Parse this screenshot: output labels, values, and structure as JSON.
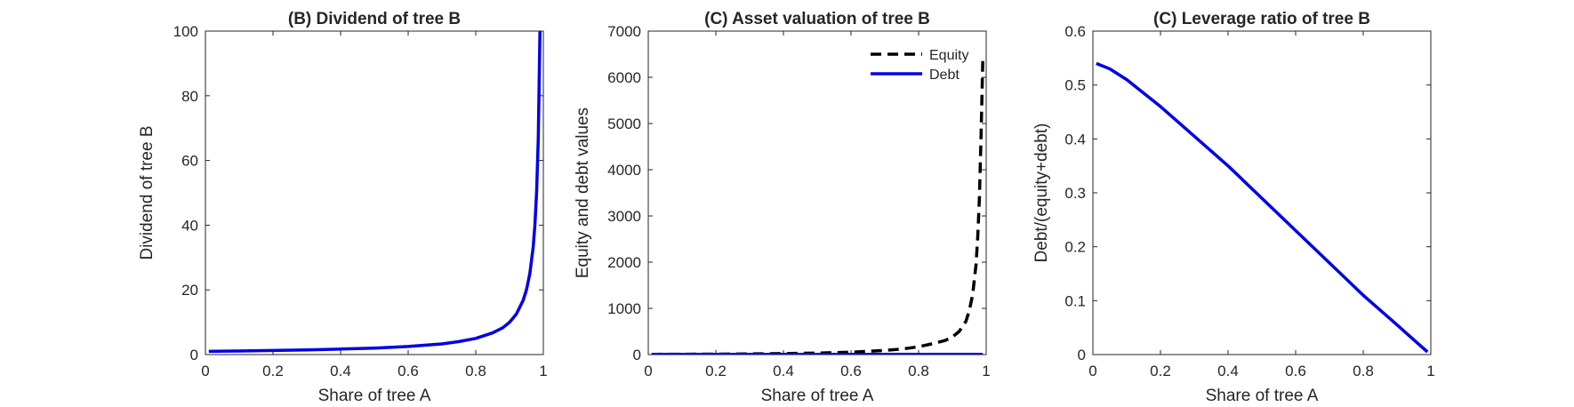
{
  "chart_data": [
    {
      "type": "line",
      "title": "(B) Dividend of tree B",
      "xlabel": "Share of tree A",
      "ylabel": "Dividend of tree B",
      "xlim": [
        0,
        1
      ],
      "ylim": [
        0,
        100
      ],
      "xticks": [
        "0",
        "0.2",
        "0.4",
        "0.6",
        "0.8",
        "1"
      ],
      "yticks": [
        "0",
        "20",
        "40",
        "60",
        "80",
        "100"
      ],
      "grid": false,
      "series": [
        {
          "color": "#0000e6",
          "style": "solid",
          "x": [
            0.01,
            0.1,
            0.2,
            0.3,
            0.4,
            0.5,
            0.6,
            0.7,
            0.75,
            0.8,
            0.85,
            0.88,
            0.9,
            0.92,
            0.94,
            0.95,
            0.96,
            0.97,
            0.975,
            0.98,
            0.985,
            0.99
          ],
          "y": [
            1.0,
            1.1,
            1.25,
            1.45,
            1.7,
            2.0,
            2.5,
            3.3,
            4.0,
            5.0,
            6.7,
            8.3,
            10.0,
            12.5,
            16.7,
            20.0,
            25.0,
            33.3,
            40.0,
            50.0,
            66.7,
            100.0
          ]
        }
      ]
    },
    {
      "type": "line",
      "title": "(C) Asset valuation of tree B",
      "xlabel": "Share of tree A",
      "ylabel": "Equity and debt values",
      "xlim": [
        0,
        1
      ],
      "ylim": [
        0,
        7000
      ],
      "xticks": [
        "0",
        "0.2",
        "0.4",
        "0.6",
        "0.8",
        "1"
      ],
      "yticks": [
        "0",
        "1000",
        "2000",
        "3000",
        "4000",
        "5000",
        "6000",
        "7000"
      ],
      "grid": false,
      "legend_position": "top-right",
      "series": [
        {
          "name": "Equity",
          "color": "#000000",
          "style": "dashed",
          "x": [
            0.01,
            0.1,
            0.2,
            0.3,
            0.4,
            0.5,
            0.6,
            0.7,
            0.75,
            0.8,
            0.85,
            0.88,
            0.9,
            0.92,
            0.94,
            0.95,
            0.96,
            0.97,
            0.975,
            0.98,
            0.985,
            0.99
          ],
          "y": [
            5,
            7,
            10,
            15,
            22,
            33,
            52,
            90,
            120,
            170,
            250,
            310,
            380,
            500,
            720,
            950,
            1300,
            1950,
            2550,
            3400,
            4800,
            6400
          ]
        },
        {
          "name": "Debt",
          "color": "#0000e6",
          "style": "solid",
          "x": [
            0.01,
            0.2,
            0.4,
            0.6,
            0.8,
            0.99
          ],
          "y": [
            6,
            6,
            6,
            5,
            4,
            3
          ]
        }
      ]
    },
    {
      "type": "line",
      "title": "(C) Leverage ratio of tree B",
      "xlabel": "Share of tree A",
      "ylabel": "Debt/(equity+debt)",
      "xlim": [
        0,
        1
      ],
      "ylim": [
        0,
        0.6
      ],
      "xticks": [
        "0",
        "0.2",
        "0.4",
        "0.6",
        "0.8",
        "1"
      ],
      "yticks": [
        "0",
        "0.1",
        "0.2",
        "0.3",
        "0.4",
        "0.5",
        "0.6"
      ],
      "grid": false,
      "series": [
        {
          "color": "#0000e6",
          "style": "solid",
          "x": [
            0.01,
            0.05,
            0.1,
            0.15,
            0.2,
            0.3,
            0.4,
            0.5,
            0.6,
            0.7,
            0.8,
            0.9,
            0.95,
            0.99
          ],
          "y": [
            0.54,
            0.53,
            0.51,
            0.485,
            0.46,
            0.405,
            0.35,
            0.29,
            0.23,
            0.17,
            0.11,
            0.055,
            0.027,
            0.005
          ]
        }
      ]
    }
  ]
}
